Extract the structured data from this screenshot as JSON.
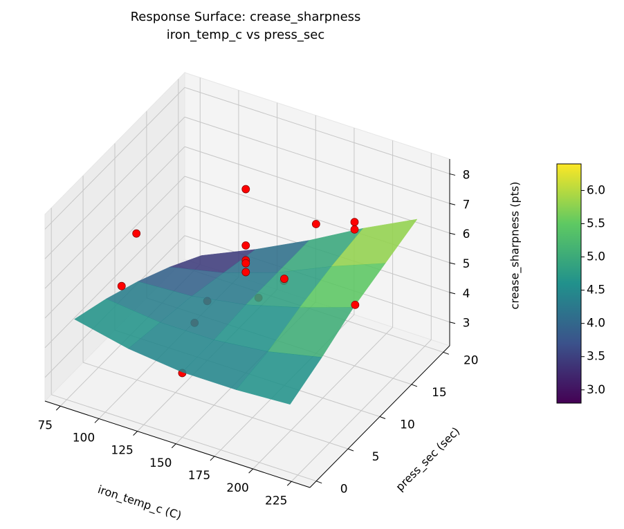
{
  "chart_data": {
    "type": "surface3d",
    "title": "Response Surface: crease_sharpness\niron_temp_c vs press_sec",
    "xlabel": "iron_temp_c (C)",
    "ylabel": "press_sec (sec)",
    "zlabel": "crease_sharpness (pts)",
    "xlim": [
      65,
      237
    ],
    "ylim": [
      -1,
      21
    ],
    "zlim": [
      2.2,
      8.5
    ],
    "xticks": [
      75,
      100,
      125,
      150,
      175,
      200,
      225
    ],
    "yticks": [
      0,
      5,
      10,
      15,
      20
    ],
    "zticks": [
      3,
      4,
      5,
      6,
      7,
      8
    ],
    "grid": true,
    "surface": {
      "x": [
        80,
        115,
        150,
        185,
        220
      ],
      "y": [
        0,
        5,
        10,
        15,
        20
      ],
      "z": [
        [
          5.0,
          4.6,
          4.4,
          4.4,
          4.5
        ],
        [
          4.6,
          4.4,
          4.4,
          4.6,
          5.0
        ],
        [
          4.1,
          4.2,
          4.5,
          5.0,
          5.6
        ],
        [
          3.5,
          3.9,
          4.5,
          5.3,
          6.0
        ],
        [
          2.8,
          3.6,
          4.5,
          5.5,
          6.4
        ]
      ],
      "colormap": "viridis",
      "opacity": 0.88
    },
    "points": {
      "color": "#ff0000",
      "x": [
        150,
        150,
        150,
        150,
        150,
        79,
        90,
        150,
        221,
        175,
        200,
        200,
        175,
        125,
        125,
        150,
        150
      ],
      "y": [
        10,
        10,
        10,
        10,
        10,
        10,
        5,
        0,
        10,
        15,
        15,
        15,
        10,
        10,
        8,
        12,
        16
      ],
      "z": [
        8.4,
        6.5,
        6.0,
        5.9,
        5.6,
        5.7,
        5.2,
        4.37,
        5.7,
        6.56,
        7.05,
        6.8,
        5.8,
        4.2,
        3.9,
        4.3,
        4.0
      ]
    },
    "colorbar": {
      "clim": [
        2.8,
        6.4
      ],
      "ticks": [
        {
          "value": 3,
          "label": "3.0"
        },
        {
          "value": 3.5,
          "label": "3.5"
        },
        {
          "value": 4,
          "label": "4.0"
        },
        {
          "value": 4.5,
          "label": "4.5"
        },
        {
          "value": 5,
          "label": "5.0"
        },
        {
          "value": 5.5,
          "label": "5.5"
        },
        {
          "value": 6,
          "label": "6.0"
        }
      ]
    }
  }
}
